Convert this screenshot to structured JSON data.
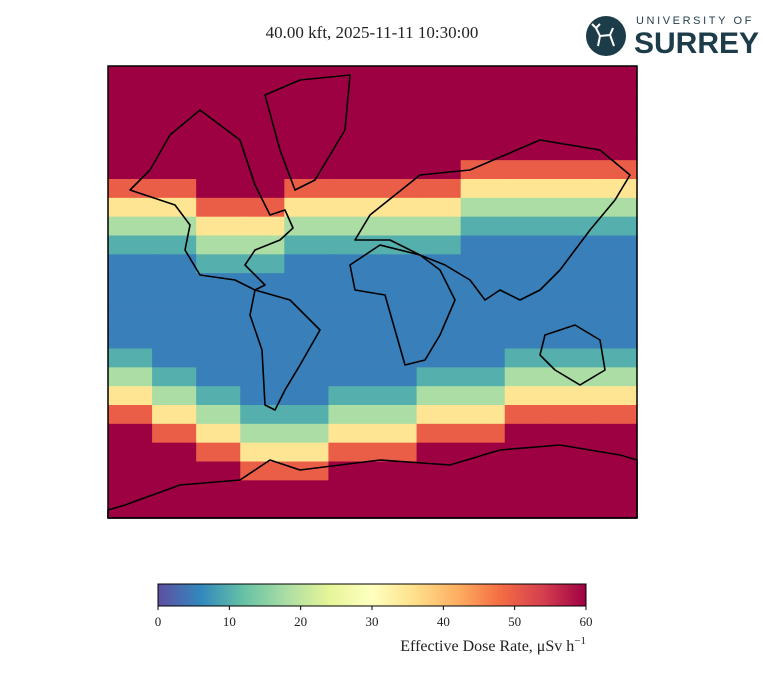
{
  "logo": {
    "line1": "UNIVERSITY OF",
    "line2": "SURREY"
  },
  "chart_data": {
    "type": "heatmap",
    "title": "40.00 kft, 2025-11-11 10:30:00",
    "z": [
      [
        60,
        60,
        60,
        60,
        60,
        60,
        60,
        60,
        60,
        60,
        60,
        60
      ],
      [
        60,
        60,
        60,
        60,
        60,
        60,
        60,
        60,
        60,
        60,
        60,
        60
      ],
      [
        60,
        60,
        60,
        60,
        60,
        60,
        60,
        60,
        60,
        60,
        60,
        60
      ],
      [
        60,
        60,
        60,
        60,
        60,
        60,
        60,
        60,
        60,
        60,
        60,
        60
      ],
      [
        60,
        60,
        60,
        60,
        60,
        60,
        60,
        60,
        60,
        60,
        60,
        60
      ],
      [
        60,
        60,
        60,
        60,
        60,
        60,
        60,
        60,
        50,
        50,
        50,
        50
      ],
      [
        50,
        50,
        60,
        60,
        50,
        50,
        50,
        50,
        35,
        35,
        35,
        35
      ],
      [
        35,
        35,
        50,
        50,
        35,
        35,
        35,
        35,
        18,
        18,
        18,
        18
      ],
      [
        18,
        18,
        35,
        35,
        18,
        18,
        18,
        18,
        10,
        10,
        10,
        10
      ],
      [
        10,
        10,
        18,
        18,
        10,
        10,
        10,
        10,
        5,
        5,
        5,
        5
      ],
      [
        5,
        5,
        10,
        10,
        5,
        5,
        5,
        5,
        5,
        5,
        5,
        5
      ],
      [
        5,
        5,
        5,
        5,
        5,
        5,
        5,
        5,
        5,
        5,
        5,
        5
      ],
      [
        5,
        5,
        5,
        5,
        5,
        5,
        5,
        5,
        5,
        5,
        5,
        5
      ],
      [
        5,
        5,
        5,
        5,
        5,
        5,
        5,
        5,
        5,
        5,
        5,
        5
      ],
      [
        5,
        5,
        5,
        5,
        5,
        5,
        5,
        5,
        5,
        5,
        5,
        5
      ],
      [
        10,
        5,
        5,
        5,
        5,
        5,
        5,
        5,
        5,
        10,
        10,
        10
      ],
      [
        18,
        10,
        5,
        5,
        5,
        5,
        5,
        10,
        10,
        18,
        18,
        18
      ],
      [
        35,
        18,
        10,
        5,
        5,
        10,
        10,
        18,
        18,
        35,
        35,
        35
      ],
      [
        50,
        35,
        18,
        10,
        10,
        18,
        18,
        35,
        35,
        50,
        50,
        50
      ],
      [
        60,
        50,
        35,
        18,
        18,
        35,
        35,
        50,
        50,
        60,
        60,
        60
      ],
      [
        60,
        60,
        50,
        35,
        35,
        50,
        50,
        60,
        60,
        60,
        60,
        60
      ],
      [
        60,
        60,
        60,
        50,
        50,
        60,
        60,
        60,
        60,
        60,
        60,
        60
      ],
      [
        60,
        60,
        60,
        60,
        60,
        60,
        60,
        60,
        60,
        60,
        60,
        60
      ],
      [
        60,
        60,
        60,
        60,
        60,
        60,
        60,
        60,
        60,
        60,
        60,
        60
      ]
    ],
    "colorbar": {
      "label": "Effective Dose Rate, μSv h",
      "label_superscript": "−1",
      "lim": [
        0,
        60
      ],
      "ticks": [
        0,
        10,
        20,
        30,
        40,
        50,
        60
      ]
    }
  }
}
